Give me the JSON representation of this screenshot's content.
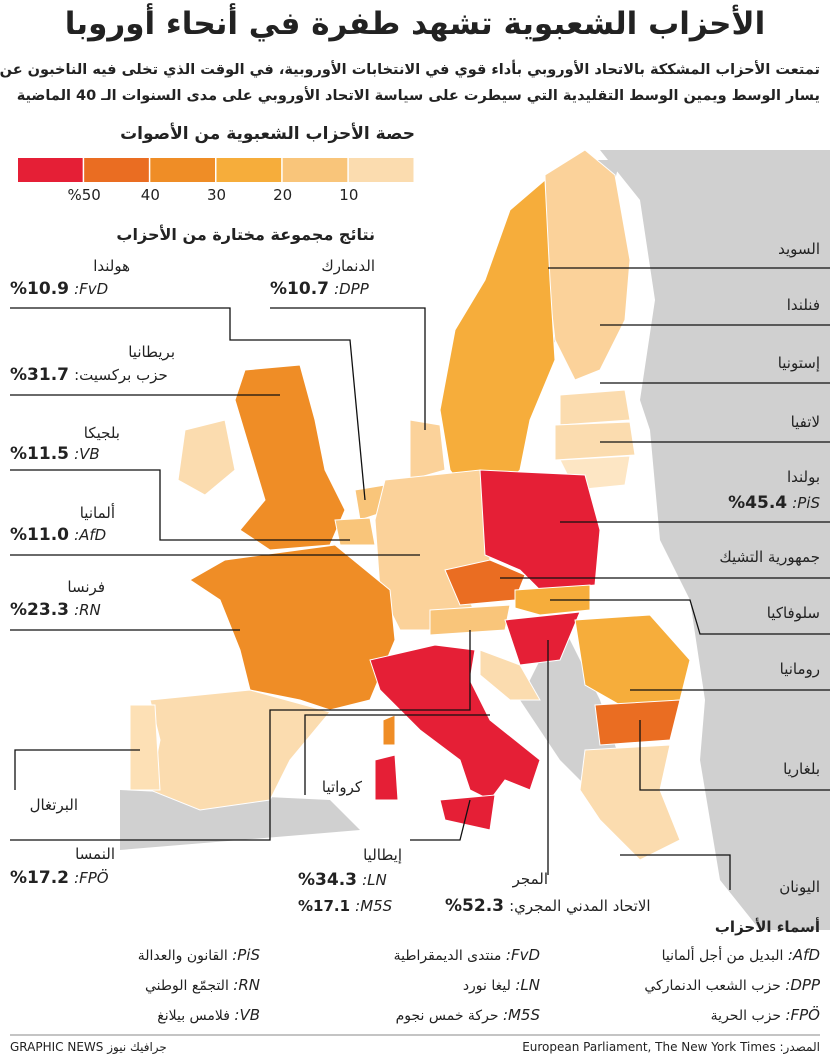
{
  "header": {
    "title": "الأحزاب الشعبوية تشهد طفرة في أنحاء أوروبا",
    "subtitle": [
      "تمتعت الأحزاب المشككة بالاتحاد الأوروبي بأداء قوي في الانتخابات الأوروبية، في الوقت الذي تخلى فيه الناخبون عن كتل",
      "يسار الوسط ويمين الوسط التقليدية التي سيطرت على سياسة الاتحاد الأوروبي على مدى السنوات الـ 40 الماضية"
    ]
  },
  "legend": {
    "title": "حصة الأحزاب الشعبوية من الأصوات",
    "colors": [
      "#e51f36",
      "#ea6d22",
      "#ef8d26",
      "#f6ad3b",
      "#f9c57a",
      "#fbdcaf"
    ],
    "labels": [
      "%50",
      "40",
      "30",
      "20",
      "10"
    ]
  },
  "results": {
    "title": "نتائج مجموعة مختارة من الأحزاب",
    "items": [
      {
        "country": "هولندا",
        "party": ":FvD",
        "share": "%10.9"
      },
      {
        "country": "الدنمارك",
        "party": ":DPP",
        "share": "%10.7"
      },
      {
        "country": "بريطانيا",
        "party": "حزب بركسيت:",
        "share": "%31.7"
      },
      {
        "country": "بلجيكا",
        "party": ":VB",
        "share": "%11.5"
      },
      {
        "country": "ألمانيا",
        "party": ":AfD",
        "share": "%11.0"
      },
      {
        "country": "فرنسا",
        "party": ":RN",
        "share": "%23.3"
      },
      {
        "country": "النمسا",
        "party": ":FPÖ",
        "share": "%17.2"
      },
      {
        "country": "إيطاليا",
        "parties": [
          {
            "party": ":LN",
            "share": "%34.3"
          },
          {
            "party": ":M5S",
            "share": "%17.1"
          }
        ]
      },
      {
        "country": "المجر",
        "party": "الاتحاد المدني المجري:",
        "share": "%52.3"
      },
      {
        "country": "بولندا",
        "party": ":PiS",
        "share": "%45.4"
      }
    ]
  },
  "country_labels": [
    "السويد",
    "فنلندا",
    "إستونيا",
    "لاتفيا",
    "جمهورية التشيك",
    "سلوفاكيا",
    "رومانيا",
    "بلغاريا",
    "اليونان",
    "البرتغال",
    "كرواتيا"
  ],
  "party_names": {
    "title": "أسماء الأحزاب",
    "items": [
      {
        "abbr": ":AfD",
        "name": "البديل من أجل ألمانيا"
      },
      {
        "abbr": ":DPP",
        "name": "حزب الشعب الدنماركي"
      },
      {
        "abbr": ":FPÖ",
        "name": "حزب الحرية"
      },
      {
        "abbr": ":FvD",
        "name": "منتدى الديمقراطية"
      },
      {
        "abbr": ":LN",
        "name": "ليغا نورد"
      },
      {
        "abbr": ":M5S",
        "name": "حركة خمس نجوم"
      },
      {
        "abbr": ":PiS",
        "name": "القانون والعدالة"
      },
      {
        "abbr": ":RN",
        "name": "التجمّع الوطني"
      },
      {
        "abbr": ":VB",
        "name": "فلامس بيلانغ"
      }
    ]
  },
  "footer": {
    "source": "المصدر: European Parliament, The New York Times",
    "credit": "GRAPHIC NEWS جرافيك نيوز"
  }
}
